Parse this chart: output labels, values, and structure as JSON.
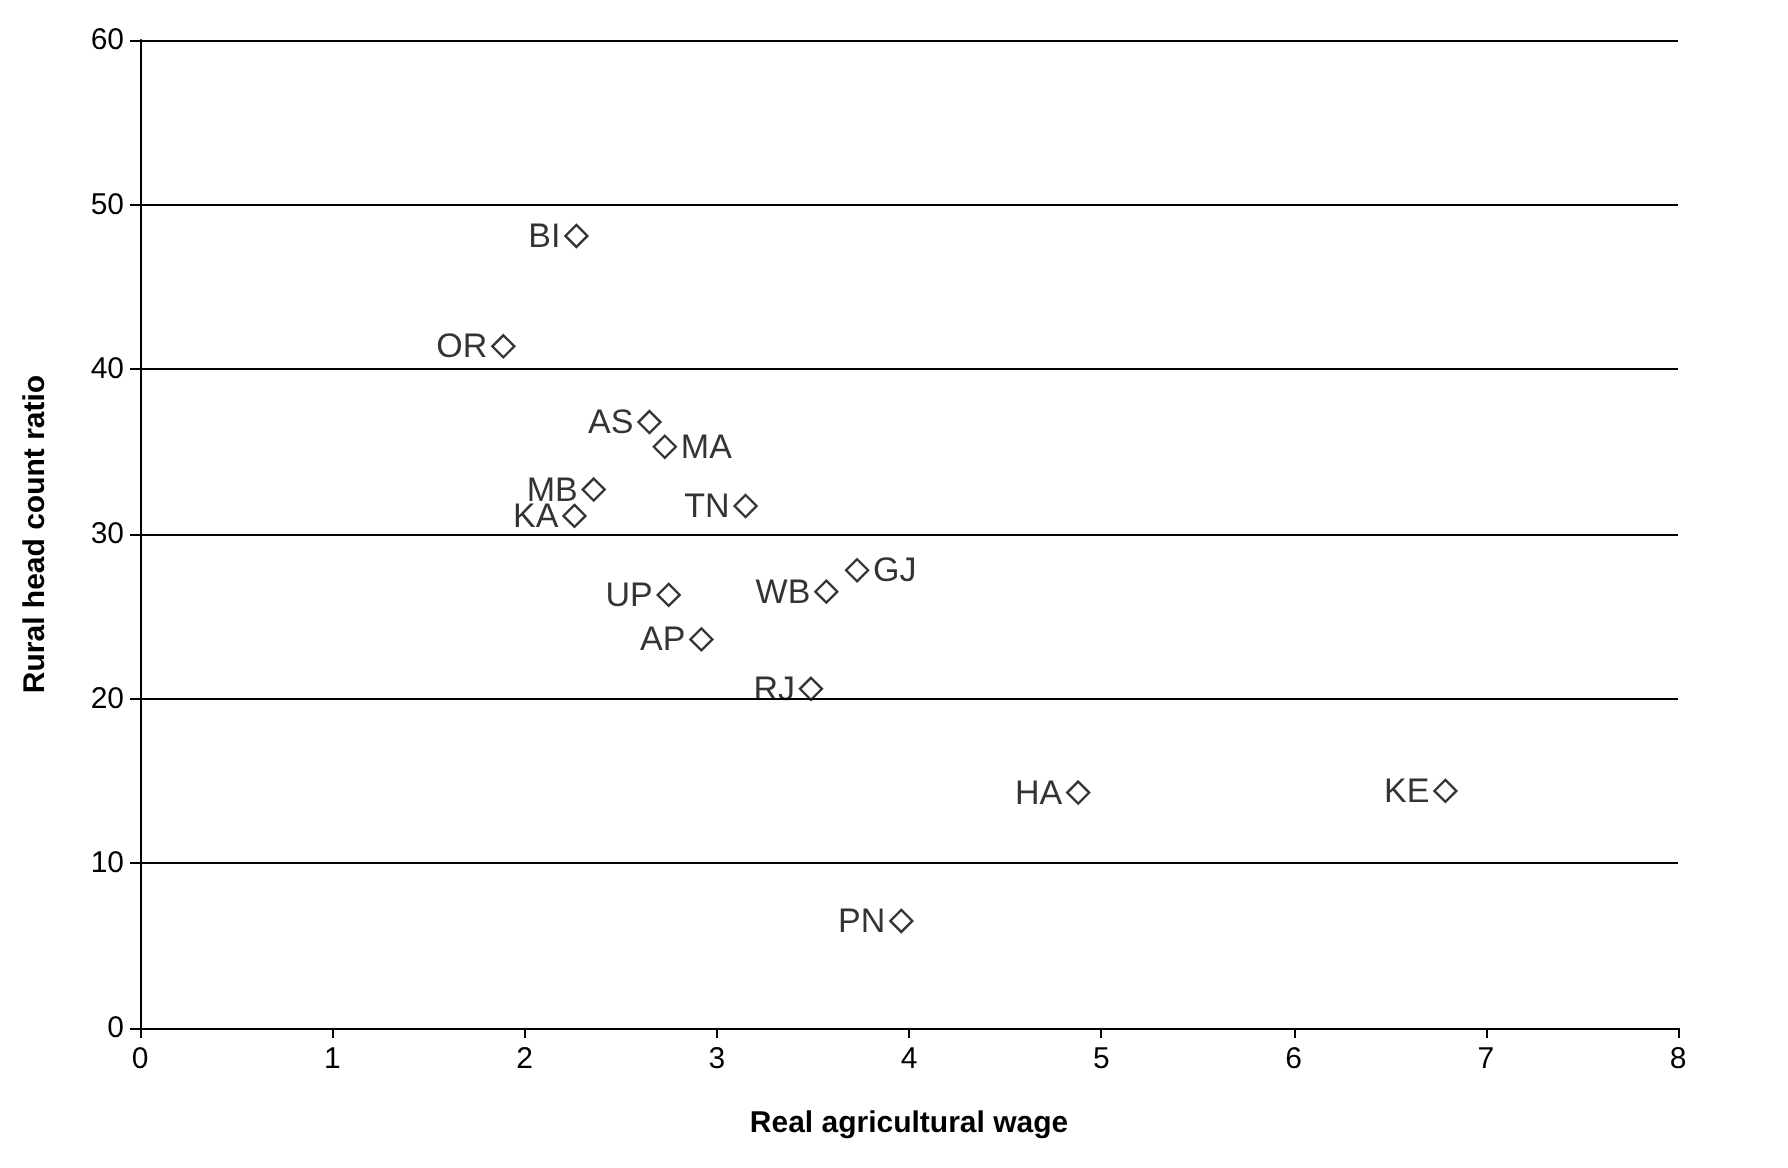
{
  "chart_data": {
    "type": "scatter",
    "xlabel": "Real agricultural wage",
    "ylabel": "Rural head count ratio",
    "x": [
      2.27,
      1.89,
      2.65,
      2.73,
      2.36,
      2.26,
      3.15,
      2.75,
      2.92,
      3.57,
      3.73,
      3.49,
      4.88,
      6.79,
      3.96
    ],
    "series": [
      {
        "color": "#000000",
        "values": [
          48.1,
          41.4,
          36.8,
          35.3,
          32.7,
          31.1,
          31.7,
          26.3,
          23.6,
          26.5,
          27.8,
          20.6,
          14.3,
          14.4,
          6.5
        ]
      }
    ],
    "annotations": [
      {
        "text": "BI",
        "x": 2.27,
        "y": 48.1
      },
      {
        "text": "OR",
        "x": 1.89,
        "y": 41.4
      },
      {
        "text": "AS",
        "x": 2.65,
        "y": 36.8
      },
      {
        "text": "MA",
        "x": 2.73,
        "y": 35.3
      },
      {
        "text": "MB",
        "x": 2.36,
        "y": 32.7
      },
      {
        "text": "KA",
        "x": 2.26,
        "y": 31.1
      },
      {
        "text": "TN",
        "x": 3.15,
        "y": 31.7
      },
      {
        "text": "UP",
        "x": 2.75,
        "y": 26.3
      },
      {
        "text": "AP",
        "x": 2.92,
        "y": 23.6
      },
      {
        "text": "WB",
        "x": 3.57,
        "y": 26.5
      },
      {
        "text": "GJ",
        "x": 3.73,
        "y": 27.8
      },
      {
        "text": "RJ",
        "x": 3.49,
        "y": 20.6
      },
      {
        "text": "HA",
        "x": 4.88,
        "y": 14.3
      },
      {
        "text": "KE",
        "x": 6.79,
        "y": 14.4
      },
      {
        "text": "PN",
        "x": 3.96,
        "y": 6.5
      }
    ],
    "xlim": [
      0,
      8
    ],
    "xticks": [
      0,
      1,
      2,
      3,
      4,
      5,
      6,
      7,
      8
    ],
    "ylim": [
      0,
      60
    ],
    "yticks": [
      0,
      10,
      20,
      30,
      40,
      50,
      60
    ],
    "grid": "y",
    "marker": "diamond"
  }
}
